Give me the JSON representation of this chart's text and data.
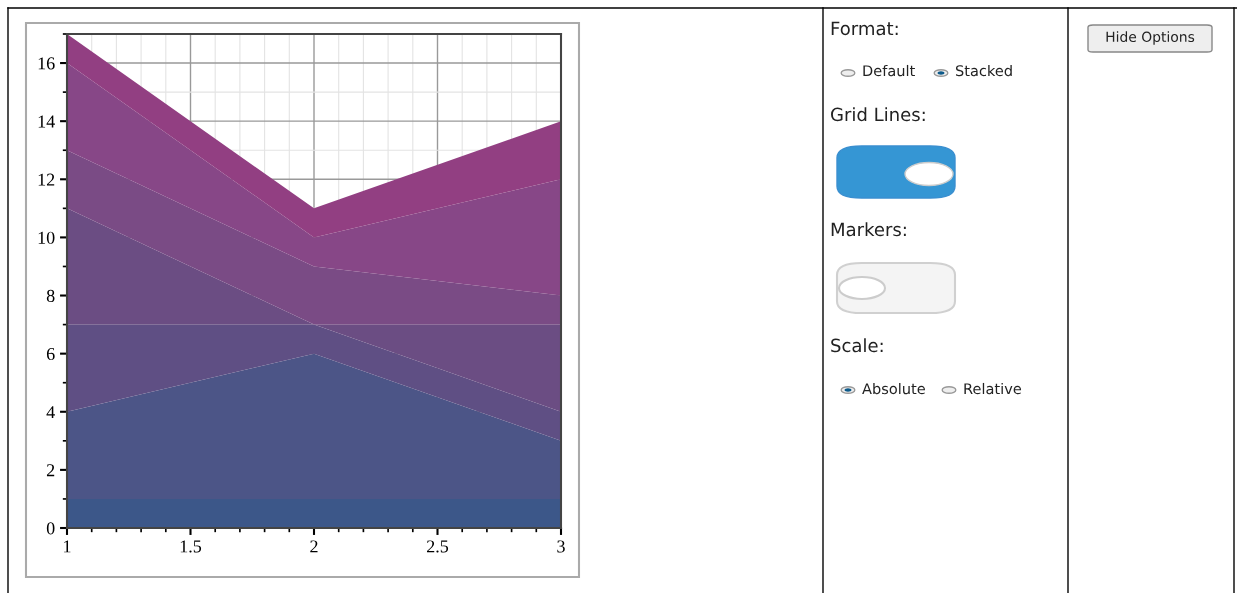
{
  "chart_data": [
    {
      "type": "area",
      "stacked": true,
      "x": [
        1,
        2,
        3
      ],
      "series": [
        {
          "color": "#3c5789",
          "values": [
            1,
            1,
            1
          ]
        },
        {
          "color": "#4c5587",
          "values": [
            3,
            5,
            2
          ]
        },
        {
          "color": "#5f4f84",
          "values": [
            3,
            1,
            1
          ]
        },
        {
          "color": "#6b4d83",
          "values": [
            4,
            0,
            3
          ]
        },
        {
          "color": "#7a4b85",
          "values": [
            2,
            2,
            1
          ]
        },
        {
          "color": "#874787",
          "values": [
            3,
            1,
            4
          ]
        },
        {
          "color": "#923f82",
          "values": [
            1,
            1,
            2
          ]
        }
      ],
      "xlim": [
        1,
        3
      ],
      "xticks": [
        1,
        1.5,
        2,
        2.5,
        3
      ],
      "ylim": [
        0,
        17
      ],
      "yticks": [
        0,
        2,
        4,
        6,
        8,
        10,
        12,
        14,
        16
      ],
      "grid": true
    },
    {
      "type": "other",
      "annotations": [
        "Format:",
        "Default",
        "Stacked",
        "Grid Lines:",
        "Markers:",
        "Scale:",
        "Absolute",
        "Relative",
        "Hide Options"
      ]
    }
  ]
}
